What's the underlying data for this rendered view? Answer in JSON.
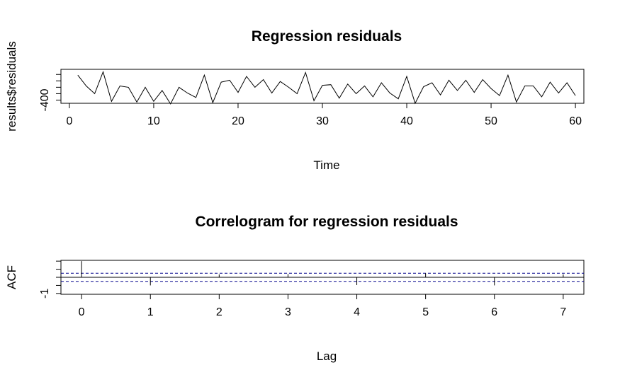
{
  "chart_data": [
    {
      "type": "line",
      "title": "Regression residuals",
      "xlabel": "Time",
      "ylabel": "results$residuals",
      "xlim": [
        -1,
        61
      ],
      "ylim": [
        -450,
        80
      ],
      "x_ticks": [
        0,
        10,
        20,
        30,
        40,
        50,
        60
      ],
      "y_ticks": [
        -400
      ],
      "y_minor_ticks": [
        -400,
        -300,
        -200,
        -100,
        0
      ],
      "grid": false,
      "series": [
        {
          "x": [
            1,
            2,
            3,
            4,
            5,
            6,
            7,
            8,
            9,
            10,
            11,
            12,
            13,
            14,
            15,
            16,
            17,
            18,
            19,
            20,
            21,
            22,
            23,
            24,
            25,
            26,
            27,
            28,
            29,
            30,
            31,
            32,
            33,
            34,
            35,
            36,
            37,
            38,
            39,
            40,
            41,
            42,
            43,
            44,
            45,
            46,
            47,
            48,
            49,
            50,
            51,
            52,
            53,
            54,
            55,
            56,
            57,
            58,
            59,
            60
          ],
          "values": [
            -10,
            -180,
            -300,
            40,
            -420,
            -180,
            -200,
            -430,
            -200,
            -420,
            -250,
            -460,
            -200,
            -290,
            -360,
            -10,
            -440,
            -120,
            -90,
            -280,
            -30,
            -200,
            -80,
            -290,
            -110,
            -200,
            -300,
            30,
            -410,
            -170,
            -160,
            -370,
            -150,
            -300,
            -180,
            -350,
            -130,
            -290,
            -380,
            -30,
            -450,
            -190,
            -130,
            -320,
            -90,
            -250,
            -90,
            -280,
            -80,
            -220,
            -330,
            -10,
            -430,
            -180,
            -180,
            -350,
            -120,
            -290,
            -130,
            -330
          ]
        }
      ]
    },
    {
      "type": "bar",
      "title": "Correlogram for regression residuals",
      "xlabel": "Lag",
      "ylabel": "ACF",
      "xlim": [
        -0.3,
        7.3
      ],
      "ylim": [
        -1.05,
        1.05
      ],
      "x_ticks": [
        0,
        1,
        2,
        3,
        4,
        5,
        6,
        7
      ],
      "y_ticks": [
        -1.0
      ],
      "y_minor_ticks": [
        -1.0,
        -0.5,
        0,
        0.5,
        1.0
      ],
      "lags": [
        0,
        1,
        2,
        3,
        4,
        5,
        6,
        7
      ],
      "values": [
        1.0,
        -0.5,
        0.18,
        0.2,
        -0.48,
        0.25,
        -0.5,
        0.18
      ],
      "confidence_band": [
        -0.25,
        0.25
      ],
      "band_color": "#00008B",
      "grid": false
    }
  ]
}
